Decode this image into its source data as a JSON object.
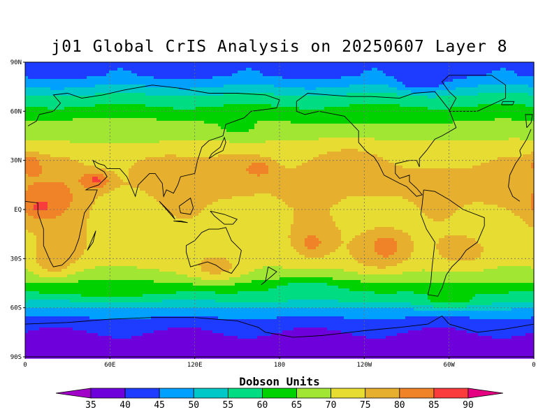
{
  "title": "j01 Global CrIS Analysis on 20250607 Layer 8",
  "map": {
    "lat_ticks": [
      "90N",
      "60N",
      "30N",
      "EQ",
      "30S",
      "60S",
      "90S"
    ],
    "lon_ticks": [
      "0",
      "60E",
      "120E",
      "180",
      "120W",
      "60W",
      "0"
    ],
    "grid": true
  },
  "colorbar": {
    "title": "Dobson Units",
    "labels": [
      "35",
      "40",
      "45",
      "50",
      "55",
      "60",
      "65",
      "70",
      "75",
      "80",
      "85",
      "90"
    ],
    "colors": [
      "#a000c8",
      "#6e00dc",
      "#1e3cff",
      "#00a0ff",
      "#00c8c8",
      "#00dc82",
      "#00d200",
      "#a0e632",
      "#e6dc32",
      "#e6af2d",
      "#f08228",
      "#fa3c3c",
      "#e60082"
    ]
  },
  "field": {
    "bands": [
      {
        "lat": 90,
        "du": 43
      },
      {
        "lat": 82,
        "du": 44
      },
      {
        "lat": 75,
        "du": 50
      },
      {
        "lat": 68,
        "du": 57
      },
      {
        "lat": 58,
        "du": 63
      },
      {
        "lat": 48,
        "du": 68
      },
      {
        "lat": 38,
        "du": 71
      },
      {
        "lat": 25,
        "du": 74
      },
      {
        "lat": 15,
        "du": 76
      },
      {
        "lat": 0,
        "du": 74
      },
      {
        "lat": -15,
        "du": 73
      },
      {
        "lat": -30,
        "du": 72
      },
      {
        "lat": -40,
        "du": 68
      },
      {
        "lat": -48,
        "du": 62
      },
      {
        "lat": -55,
        "du": 56
      },
      {
        "lat": -62,
        "du": 48
      },
      {
        "lat": -70,
        "du": 42
      },
      {
        "lat": -80,
        "du": 38
      },
      {
        "lat": -90,
        "du": 38
      }
    ],
    "anomalies": [
      {
        "lon": 15,
        "lat": 5,
        "rlon": 22,
        "rlat": 14,
        "du": 84
      },
      {
        "lon": 20,
        "lat": 22,
        "rlon": 18,
        "rlat": 9,
        "du": 80
      },
      {
        "lon": 10,
        "lat": 2,
        "rlon": 8,
        "rlat": 5,
        "du": 87
      },
      {
        "lon": 50,
        "lat": 18,
        "rlon": 10,
        "rlat": 5,
        "du": 86
      },
      {
        "lon": 4,
        "lat": 28,
        "rlon": 6,
        "rlat": 6,
        "du": 86
      },
      {
        "lon": 165,
        "lat": 25,
        "rlon": 10,
        "rlat": 5,
        "du": 86
      },
      {
        "lon": 203,
        "lat": -20,
        "rlon": 7,
        "rlat": 5,
        "du": 86
      },
      {
        "lon": 255,
        "lat": -23,
        "rlon": 12,
        "rlat": 8,
        "du": 86
      },
      {
        "lon": 150,
        "lat": 23,
        "rlon": 22,
        "rlat": 12,
        "du": 80
      },
      {
        "lon": 230,
        "lat": 28,
        "rlon": 25,
        "rlat": 10,
        "du": 79
      },
      {
        "lon": 205,
        "lat": -18,
        "rlon": 15,
        "rlat": 10,
        "du": 80
      },
      {
        "lon": 250,
        "lat": -25,
        "rlon": 20,
        "rlat": 12,
        "du": 80
      },
      {
        "lon": 345,
        "lat": 18,
        "rlon": 25,
        "rlat": 15,
        "du": 80
      },
      {
        "lon": 310,
        "lat": -25,
        "rlon": 20,
        "rlat": 10,
        "du": 77
      },
      {
        "lon": 100,
        "lat": 25,
        "rlon": 25,
        "rlat": 8,
        "du": 79
      },
      {
        "lon": 30,
        "lat": -20,
        "rlon": 15,
        "rlat": 12,
        "du": 78
      },
      {
        "lon": 20,
        "lat": -30,
        "rlon": 12,
        "rlat": 10,
        "du": 80
      },
      {
        "lon": 250,
        "lat": 18,
        "rlon": 20,
        "rlat": 8,
        "du": 79
      },
      {
        "lon": 200,
        "lat": -48,
        "rlon": 30,
        "rlat": 5,
        "du": 58
      },
      {
        "lon": 60,
        "lat": -48,
        "rlon": 35,
        "rlat": 5,
        "du": 64
      },
      {
        "lon": 300,
        "lat": -55,
        "rlon": 25,
        "rlat": 5,
        "du": 62
      },
      {
        "lon": 150,
        "lat": 50,
        "rlon": 20,
        "rlat": 6,
        "du": 64
      },
      {
        "lon": 280,
        "lat": 78,
        "rlon": 15,
        "rlat": 5,
        "du": 40
      },
      {
        "lon": 135,
        "lat": -35,
        "rlon": 20,
        "rlat": 8,
        "du": 77
      },
      {
        "lon": 95,
        "lat": -25,
        "rlon": 20,
        "rlat": 10,
        "du": 72
      },
      {
        "lon": 60,
        "lat": 50,
        "rlon": 40,
        "rlat": 6,
        "du": 67
      },
      {
        "lon": 240,
        "lat": 60,
        "rlon": 30,
        "rlat": 6,
        "du": 60
      }
    ]
  }
}
